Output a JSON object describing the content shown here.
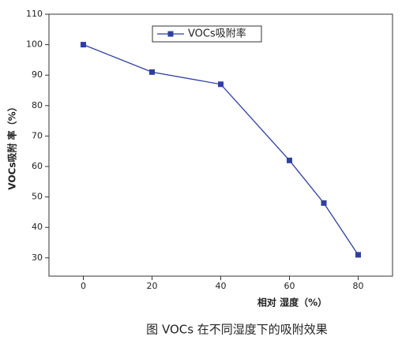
{
  "chart_data": {
    "type": "line",
    "caption": "图   VOCs 在不同湿度下的吸附效果",
    "x_label": "相对 湿度（%）",
    "y_label": "VOCs吸附 率（%）",
    "x": [
      0,
      20,
      40,
      60,
      70,
      80
    ],
    "series": [
      {
        "name": "VOCs吸附率",
        "color": "#2f3f9f",
        "values": [
          100,
          91,
          87,
          62,
          48,
          31
        ]
      }
    ],
    "xlim": [
      -10,
      90
    ],
    "xticks": [
      0,
      20,
      40,
      60,
      80
    ],
    "ylim": [
      24,
      110
    ],
    "yticks": [
      30,
      40,
      50,
      60,
      70,
      80,
      90,
      100,
      110
    ],
    "grid": false
  }
}
